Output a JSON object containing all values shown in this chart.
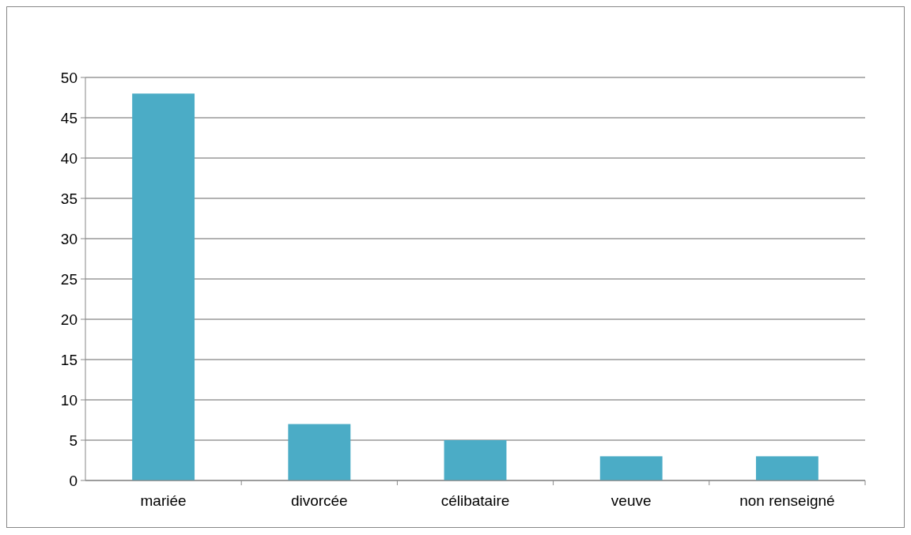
{
  "chart_data": {
    "type": "bar",
    "categories": [
      "mariée",
      "divorcée",
      "célibataire",
      "veuve",
      "non renseigné"
    ],
    "values": [
      48,
      7,
      5,
      3,
      3
    ],
    "color": "#4bacc6",
    "ylim": [
      0,
      50
    ],
    "yticks": [
      0,
      5,
      10,
      15,
      20,
      25,
      30,
      35,
      40,
      45,
      50
    ],
    "grid": "y"
  }
}
